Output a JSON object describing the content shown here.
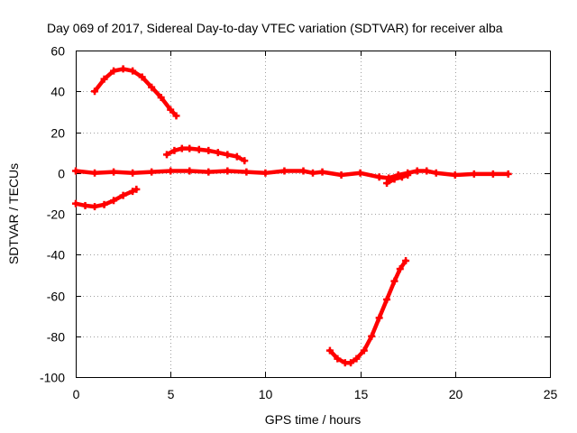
{
  "chart_data": {
    "type": "line",
    "title": "Day 069 of 2017, Sidereal Day-to-day VTEC variation (SDTVAR) for receiver alba",
    "xlabel": "GPS time / hours",
    "ylabel": "SDTVAR / TECUs",
    "xlim": [
      0,
      25
    ],
    "ylim": [
      -100,
      60
    ],
    "xticks": [
      0,
      5,
      10,
      15,
      20,
      25
    ],
    "yticks": [
      -100,
      -80,
      -60,
      -40,
      -20,
      0,
      20,
      40,
      60
    ],
    "xtick_labels": [
      "0",
      "5",
      "10",
      "15",
      "20",
      "25"
    ],
    "ytick_labels": [
      "-100",
      "-80",
      "-60",
      "-40",
      "-20",
      "0",
      "20",
      "40",
      "60"
    ],
    "grid": true,
    "legend": "none",
    "color": "#ff0000",
    "series": [
      {
        "x": [
          1.0,
          1.5,
          2.0,
          2.5,
          3.0,
          3.5,
          4.0,
          4.5,
          5.0,
          5.3
        ],
        "y": [
          40,
          46,
          50,
          51,
          50,
          47,
          42,
          37,
          31,
          28
        ]
      },
      {
        "x": [
          0.0,
          0.5,
          1.0,
          1.5,
          2.0,
          2.5,
          3.0,
          3.2
        ],
        "y": [
          -15,
          -16,
          -16.5,
          -15.5,
          -13.5,
          -11,
          -9,
          -8
        ]
      },
      {
        "x": [
          4.8,
          5.2,
          5.6,
          6.0,
          6.5,
          7.0,
          7.5,
          8.0,
          8.5,
          8.9
        ],
        "y": [
          9,
          11,
          12,
          12,
          11.5,
          11,
          10,
          9,
          8,
          6
        ]
      },
      {
        "x": [
          0,
          1,
          2,
          3,
          4,
          5,
          6,
          7,
          8,
          9,
          10,
          11,
          12,
          12.5,
          13,
          14,
          15,
          16,
          16.5,
          17,
          17.5,
          18,
          18.5,
          19,
          20,
          21,
          22,
          22.8
        ],
        "y": [
          1,
          0,
          0.5,
          0,
          0.5,
          1,
          1,
          0.5,
          1,
          0.5,
          0,
          1,
          1,
          0,
          0.5,
          -1,
          0,
          -2,
          -2.5,
          -1,
          0,
          1,
          1,
          0,
          -1,
          -0.5,
          -0.5,
          -0.5
        ]
      },
      {
        "x": [
          16.4,
          16.8,
          17.2,
          17.5
        ],
        "y": [
          -5,
          -3,
          -2,
          -1
        ]
      },
      {
        "x": [
          13.4,
          13.8,
          14.2,
          14.5,
          14.8,
          15.2,
          15.6,
          16.0,
          16.4,
          16.8,
          17.1,
          17.4
        ],
        "y": [
          -87,
          -91,
          -93,
          -93,
          -91,
          -87,
          -80,
          -71,
          -62,
          -53,
          -47,
          -43
        ]
      }
    ]
  }
}
